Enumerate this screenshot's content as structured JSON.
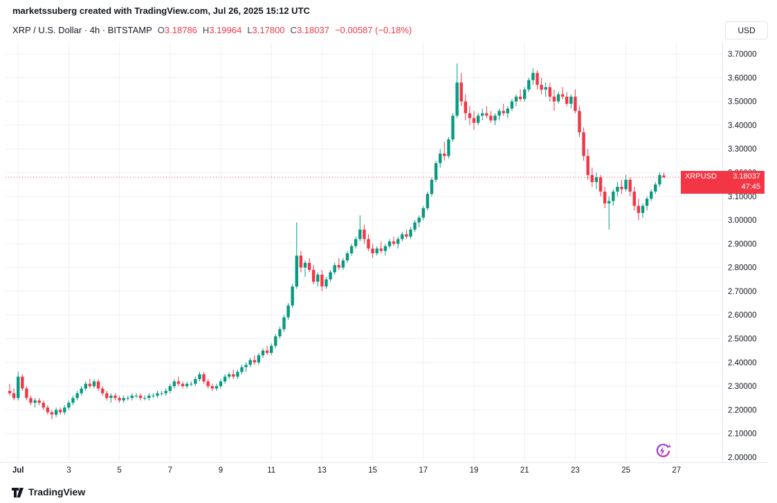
{
  "attribution": "marketssuberg created with TradingView.com, Jul 26, 2025 15:12 UTC",
  "symbol_bar": {
    "title": "XRP / U.S. Dollar · 4h · BITSTAMP",
    "ohlc": [
      {
        "label": "O",
        "value": "3.18786"
      },
      {
        "label": "H",
        "value": "3.19964"
      },
      {
        "label": "L",
        "value": "3.17800"
      },
      {
        "label": "C",
        "value": "3.18037"
      }
    ],
    "change": "−0.00587 (−0.18%)",
    "currency_button": "USD"
  },
  "price_label": {
    "symbol": "XRPUSD",
    "price": "3.18037",
    "countdown": "47:45"
  },
  "footer": {
    "logo_text": "TradingView"
  },
  "colors": {
    "up": "#089981",
    "down": "#f23645",
    "grid": "#eef0f4",
    "separator": "#e0e3eb",
    "axis_text": "#131722",
    "accent_red": "#f23645"
  },
  "chart_data": {
    "type": "candlestick",
    "title": "XRP / U.S. Dollar",
    "symbol": "XRPUSD",
    "exchange": "BITSTAMP",
    "interval": "4h",
    "last_price": 3.18037,
    "y_axis": {
      "min": 2.0,
      "max": 3.7,
      "tick_step": 0.1,
      "labels": [
        "3.70000",
        "3.60000",
        "3.50000",
        "3.40000",
        "3.30000",
        "3.20000",
        "3.10000",
        "3.00000",
        "2.90000",
        "2.80000",
        "2.70000",
        "2.60000",
        "2.50000",
        "2.40000",
        "2.30000",
        "2.20000",
        "2.10000",
        "2.00000"
      ]
    },
    "x_ticks": [
      {
        "label": "Jul",
        "index": 2,
        "bold": true
      },
      {
        "label": "3",
        "index": 14
      },
      {
        "label": "5",
        "index": 26
      },
      {
        "label": "7",
        "index": 38
      },
      {
        "label": "9",
        "index": 50
      },
      {
        "label": "11",
        "index": 62
      },
      {
        "label": "13",
        "index": 74
      },
      {
        "label": "15",
        "index": 86
      },
      {
        "label": "17",
        "index": 98
      },
      {
        "label": "19",
        "index": 110
      },
      {
        "label": "21",
        "index": 122
      },
      {
        "label": "23",
        "index": 134
      },
      {
        "label": "25",
        "index": 146
      },
      {
        "label": "27",
        "index": 158
      }
    ],
    "candles": [
      [
        2.28,
        2.31,
        2.26,
        2.27
      ],
      [
        2.27,
        2.29,
        2.24,
        2.25
      ],
      [
        2.25,
        2.36,
        2.24,
        2.34
      ],
      [
        2.34,
        2.35,
        2.28,
        2.29
      ],
      [
        2.29,
        2.3,
        2.24,
        2.25
      ],
      [
        2.25,
        2.26,
        2.22,
        2.23
      ],
      [
        2.23,
        2.25,
        2.21,
        2.24
      ],
      [
        2.24,
        2.25,
        2.22,
        2.23
      ],
      [
        2.23,
        2.24,
        2.2,
        2.21
      ],
      [
        2.21,
        2.22,
        2.18,
        2.19
      ],
      [
        2.19,
        2.2,
        2.16,
        2.18
      ],
      [
        2.18,
        2.21,
        2.17,
        2.2
      ],
      [
        2.2,
        2.21,
        2.18,
        2.19
      ],
      [
        2.19,
        2.22,
        2.18,
        2.21
      ],
      [
        2.21,
        2.24,
        2.2,
        2.23
      ],
      [
        2.23,
        2.26,
        2.22,
        2.25
      ],
      [
        2.25,
        2.28,
        2.24,
        2.27
      ],
      [
        2.27,
        2.3,
        2.26,
        2.29
      ],
      [
        2.29,
        2.32,
        2.28,
        2.31
      ],
      [
        2.31,
        2.33,
        2.29,
        2.3
      ],
      [
        2.3,
        2.33,
        2.29,
        2.32
      ],
      [
        2.32,
        2.33,
        2.28,
        2.29
      ],
      [
        2.29,
        2.3,
        2.26,
        2.27
      ],
      [
        2.27,
        2.28,
        2.24,
        2.25
      ],
      [
        2.25,
        2.27,
        2.23,
        2.26
      ],
      [
        2.26,
        2.27,
        2.24,
        2.25
      ],
      [
        2.25,
        2.26,
        2.23,
        2.24
      ],
      [
        2.24,
        2.26,
        2.23,
        2.25
      ],
      [
        2.25,
        2.26,
        2.24,
        2.25
      ],
      [
        2.25,
        2.27,
        2.24,
        2.26
      ],
      [
        2.26,
        2.27,
        2.25,
        2.26
      ],
      [
        2.26,
        2.27,
        2.24,
        2.25
      ],
      [
        2.25,
        2.26,
        2.24,
        2.25
      ],
      [
        2.25,
        2.27,
        2.24,
        2.26
      ],
      [
        2.26,
        2.27,
        2.25,
        2.26
      ],
      [
        2.26,
        2.28,
        2.25,
        2.27
      ],
      [
        2.27,
        2.28,
        2.26,
        2.27
      ],
      [
        2.27,
        2.29,
        2.26,
        2.28
      ],
      [
        2.28,
        2.31,
        2.27,
        2.3
      ],
      [
        2.3,
        2.33,
        2.29,
        2.32
      ],
      [
        2.32,
        2.34,
        2.3,
        2.31
      ],
      [
        2.31,
        2.32,
        2.29,
        2.3
      ],
      [
        2.3,
        2.32,
        2.29,
        2.31
      ],
      [
        2.31,
        2.32,
        2.3,
        2.31
      ],
      [
        2.31,
        2.34,
        2.3,
        2.33
      ],
      [
        2.33,
        2.36,
        2.32,
        2.35
      ],
      [
        2.35,
        2.36,
        2.31,
        2.32
      ],
      [
        2.32,
        2.33,
        2.29,
        2.3
      ],
      [
        2.3,
        2.31,
        2.28,
        2.29
      ],
      [
        2.29,
        2.31,
        2.28,
        2.3
      ],
      [
        2.3,
        2.33,
        2.29,
        2.32
      ],
      [
        2.32,
        2.35,
        2.31,
        2.34
      ],
      [
        2.34,
        2.36,
        2.33,
        2.35
      ],
      [
        2.35,
        2.37,
        2.33,
        2.34
      ],
      [
        2.34,
        2.37,
        2.33,
        2.36
      ],
      [
        2.36,
        2.39,
        2.35,
        2.38
      ],
      [
        2.38,
        2.4,
        2.36,
        2.39
      ],
      [
        2.39,
        2.42,
        2.38,
        2.41
      ],
      [
        2.41,
        2.43,
        2.39,
        2.4
      ],
      [
        2.4,
        2.44,
        2.39,
        2.43
      ],
      [
        2.43,
        2.46,
        2.42,
        2.45
      ],
      [
        2.45,
        2.47,
        2.43,
        2.44
      ],
      [
        2.44,
        2.48,
        2.43,
        2.47
      ],
      [
        2.47,
        2.52,
        2.46,
        2.51
      ],
      [
        2.51,
        2.55,
        2.5,
        2.54
      ],
      [
        2.54,
        2.6,
        2.53,
        2.59
      ],
      [
        2.59,
        2.65,
        2.58,
        2.64
      ],
      [
        2.64,
        2.73,
        2.63,
        2.72
      ],
      [
        2.72,
        2.99,
        2.71,
        2.85
      ],
      [
        2.85,
        2.87,
        2.78,
        2.8
      ],
      [
        2.8,
        2.83,
        2.76,
        2.82
      ],
      [
        2.82,
        2.84,
        2.78,
        2.79
      ],
      [
        2.79,
        2.81,
        2.73,
        2.74
      ],
      [
        2.74,
        2.78,
        2.72,
        2.77
      ],
      [
        2.77,
        2.79,
        2.7,
        2.72
      ],
      [
        2.72,
        2.76,
        2.71,
        2.75
      ],
      [
        2.75,
        2.79,
        2.74,
        2.78
      ],
      [
        2.78,
        2.82,
        2.77,
        2.81
      ],
      [
        2.81,
        2.84,
        2.79,
        2.8
      ],
      [
        2.8,
        2.84,
        2.79,
        2.83
      ],
      [
        2.83,
        2.87,
        2.82,
        2.86
      ],
      [
        2.86,
        2.9,
        2.85,
        2.89
      ],
      [
        2.89,
        2.93,
        2.88,
        2.92
      ],
      [
        2.92,
        3.02,
        2.91,
        2.96
      ],
      [
        2.96,
        2.98,
        2.9,
        2.92
      ],
      [
        2.92,
        2.94,
        2.87,
        2.88
      ],
      [
        2.88,
        2.9,
        2.84,
        2.86
      ],
      [
        2.86,
        2.89,
        2.85,
        2.88
      ],
      [
        2.88,
        2.91,
        2.86,
        2.87
      ],
      [
        2.87,
        2.9,
        2.85,
        2.89
      ],
      [
        2.89,
        2.92,
        2.88,
        2.91
      ],
      [
        2.91,
        2.93,
        2.89,
        2.9
      ],
      [
        2.9,
        2.93,
        2.88,
        2.92
      ],
      [
        2.92,
        2.95,
        2.91,
        2.94
      ],
      [
        2.94,
        2.96,
        2.92,
        2.93
      ],
      [
        2.93,
        2.97,
        2.92,
        2.96
      ],
      [
        2.96,
        3.0,
        2.95,
        2.99
      ],
      [
        2.99,
        3.02,
        2.97,
        3.01
      ],
      [
        3.01,
        3.06,
        3.0,
        3.05
      ],
      [
        3.05,
        3.12,
        3.04,
        3.11
      ],
      [
        3.11,
        3.18,
        3.1,
        3.17
      ],
      [
        3.17,
        3.25,
        3.16,
        3.24
      ],
      [
        3.24,
        3.3,
        3.22,
        3.28
      ],
      [
        3.28,
        3.33,
        3.25,
        3.27
      ],
      [
        3.27,
        3.35,
        3.26,
        3.34
      ],
      [
        3.34,
        3.45,
        3.33,
        3.44
      ],
      [
        3.44,
        3.66,
        3.43,
        3.58
      ],
      [
        3.58,
        3.62,
        3.48,
        3.5
      ],
      [
        3.5,
        3.53,
        3.42,
        3.45
      ],
      [
        3.45,
        3.48,
        3.4,
        3.43
      ],
      [
        3.43,
        3.46,
        3.38,
        3.41
      ],
      [
        3.41,
        3.45,
        3.4,
        3.44
      ],
      [
        3.44,
        3.47,
        3.42,
        3.45
      ],
      [
        3.45,
        3.48,
        3.43,
        3.44
      ],
      [
        3.44,
        3.46,
        3.41,
        3.42
      ],
      [
        3.42,
        3.45,
        3.4,
        3.44
      ],
      [
        3.44,
        3.47,
        3.42,
        3.46
      ],
      [
        3.46,
        3.49,
        3.44,
        3.45
      ],
      [
        3.45,
        3.48,
        3.43,
        3.47
      ],
      [
        3.47,
        3.51,
        3.46,
        3.5
      ],
      [
        3.5,
        3.53,
        3.48,
        3.52
      ],
      [
        3.52,
        3.55,
        3.5,
        3.51
      ],
      [
        3.51,
        3.56,
        3.5,
        3.55
      ],
      [
        3.55,
        3.6,
        3.54,
        3.59
      ],
      [
        3.59,
        3.64,
        3.57,
        3.62
      ],
      [
        3.62,
        3.63,
        3.55,
        3.57
      ],
      [
        3.57,
        3.6,
        3.53,
        3.55
      ],
      [
        3.55,
        3.58,
        3.52,
        3.56
      ],
      [
        3.56,
        3.58,
        3.5,
        3.52
      ],
      [
        3.52,
        3.55,
        3.46,
        3.5
      ],
      [
        3.5,
        3.54,
        3.49,
        3.53
      ],
      [
        3.53,
        3.56,
        3.51,
        3.52
      ],
      [
        3.52,
        3.54,
        3.48,
        3.49
      ],
      [
        3.49,
        3.53,
        3.47,
        3.52
      ],
      [
        3.52,
        3.55,
        3.45,
        3.46
      ],
      [
        3.46,
        3.48,
        3.35,
        3.37
      ],
      [
        3.37,
        3.39,
        3.25,
        3.27
      ],
      [
        3.27,
        3.3,
        3.17,
        3.19
      ],
      [
        3.19,
        3.22,
        3.14,
        3.16
      ],
      [
        3.16,
        3.2,
        3.13,
        3.18
      ],
      [
        3.18,
        3.19,
        3.1,
        3.12
      ],
      [
        3.12,
        3.14,
        3.05,
        3.07
      ],
      [
        3.07,
        3.1,
        2.96,
        3.08
      ],
      [
        3.08,
        3.13,
        3.06,
        3.12
      ],
      [
        3.12,
        3.16,
        3.1,
        3.14
      ],
      [
        3.14,
        3.17,
        3.11,
        3.13
      ],
      [
        3.13,
        3.19,
        3.12,
        3.17
      ],
      [
        3.17,
        3.18,
        3.1,
        3.12
      ],
      [
        3.12,
        3.14,
        3.04,
        3.06
      ],
      [
        3.06,
        3.09,
        3.0,
        3.03
      ],
      [
        3.03,
        3.07,
        3.01,
        3.06
      ],
      [
        3.06,
        3.1,
        3.04,
        3.09
      ],
      [
        3.09,
        3.13,
        3.08,
        3.12
      ],
      [
        3.12,
        3.16,
        3.11,
        3.15
      ],
      [
        3.15,
        3.2,
        3.14,
        3.19
      ],
      [
        3.18786,
        3.19964,
        3.178,
        3.18037
      ]
    ]
  }
}
